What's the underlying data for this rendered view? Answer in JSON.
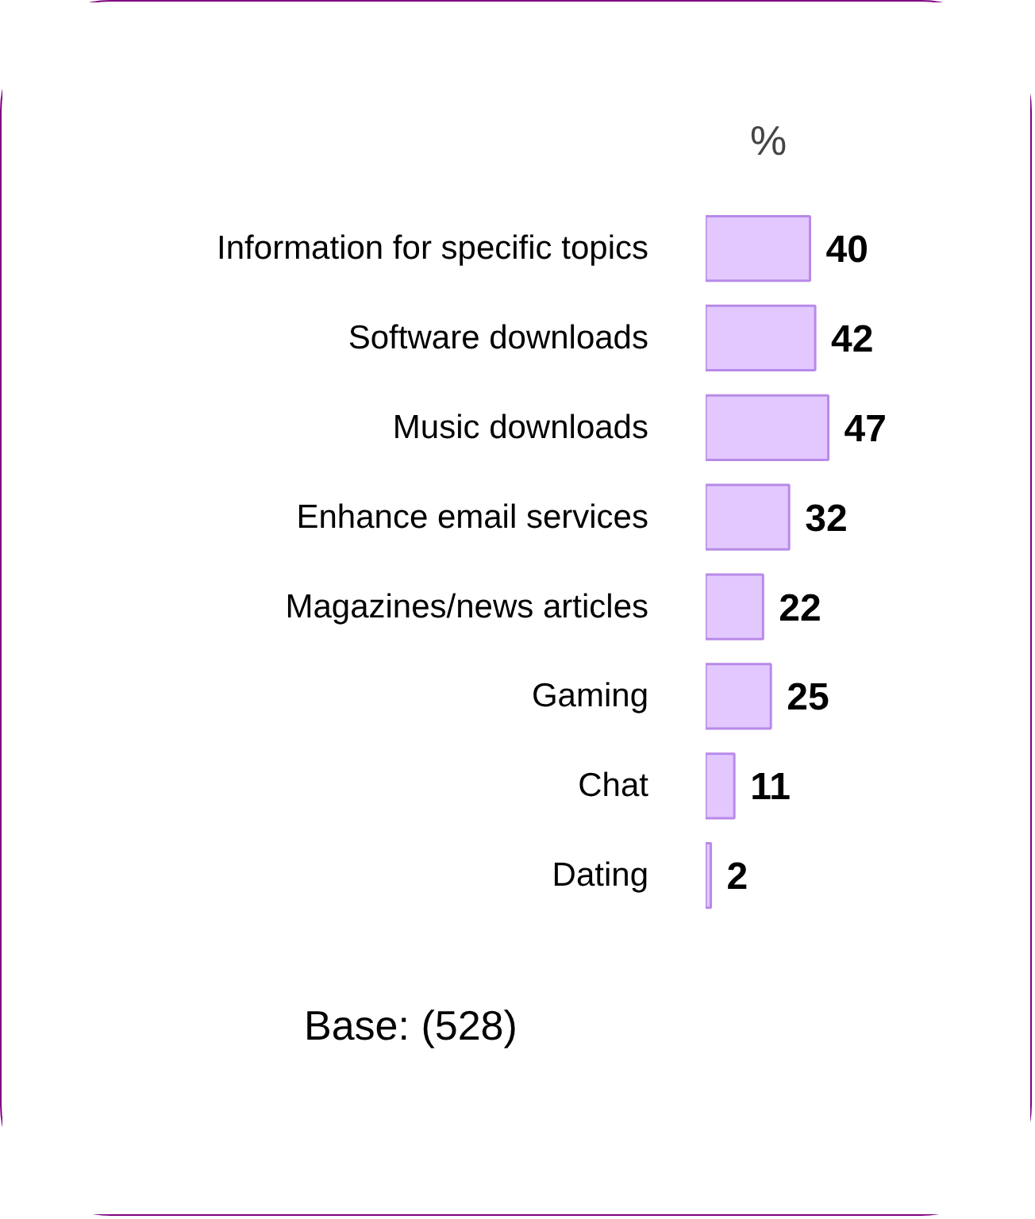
{
  "chart_data": {
    "type": "bar",
    "orientation": "horizontal",
    "title": "%",
    "categories": [
      "Information for specific topics",
      "Software downloads",
      "Music downloads",
      "Enhance email services",
      "Magazines/news articles",
      "Gaming",
      "Chat",
      "Dating"
    ],
    "values": [
      40,
      42,
      47,
      32,
      22,
      25,
      11,
      2
    ],
    "color": "#e2c8ff",
    "data_labels": true,
    "annotations": [
      "Base: (528)"
    ]
  }
}
